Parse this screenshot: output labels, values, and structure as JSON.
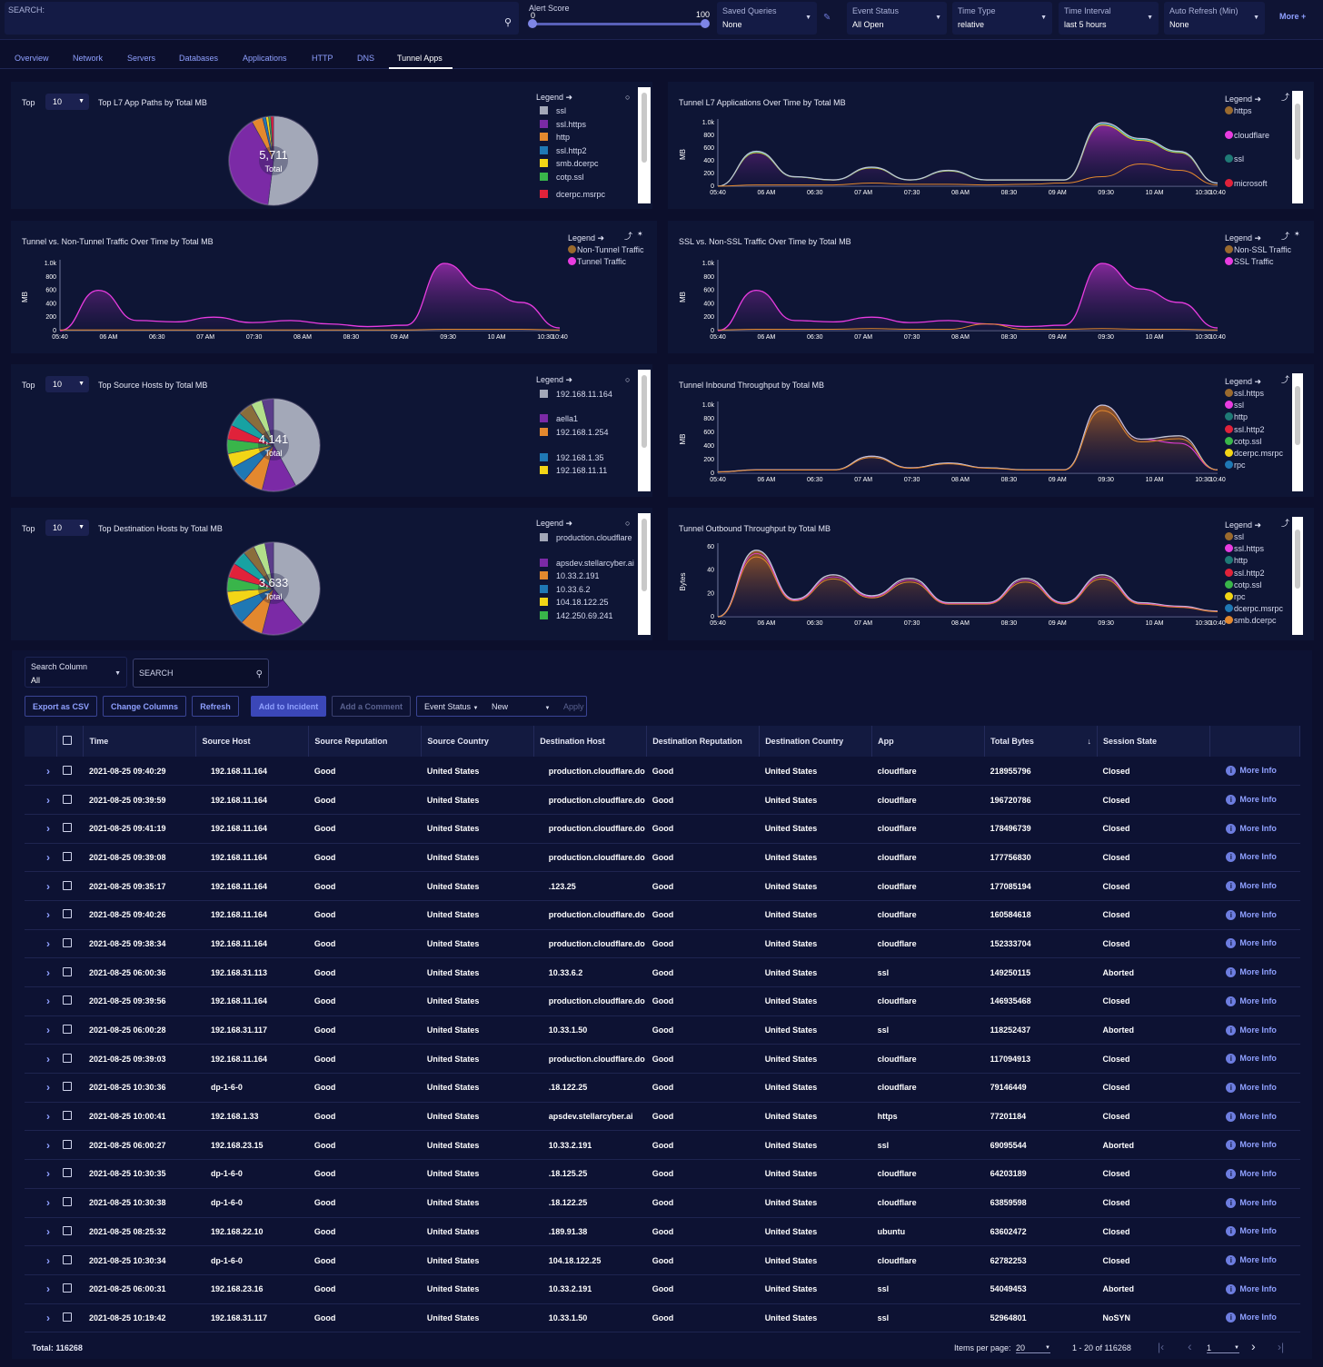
{
  "top": {
    "search_label": "SEARCH:",
    "alert_score": {
      "label": "Alert Score",
      "min": "0",
      "max": "100",
      "low": 0,
      "high": 100
    },
    "saved_queries": {
      "label": "Saved Queries",
      "value": "None"
    },
    "event_status": {
      "label": "Event Status",
      "value": "All Open"
    },
    "time_type": {
      "label": "Time Type",
      "value": "relative"
    },
    "time_interval": {
      "label": "Time Interval",
      "value": "last 5 hours"
    },
    "auto_refresh": {
      "label": "Auto Refresh (Min)",
      "value": "None"
    },
    "more": "More +"
  },
  "tabs": [
    "Overview",
    "Network",
    "Servers",
    "Databases",
    "Applications",
    "HTTP",
    "DNS",
    "Tunnel Apps"
  ],
  "active_tab": "Tunnel Apps",
  "colors": {
    "accent": "#8fa0ff",
    "magenta": "#e83ce0",
    "orange": "#e3882e",
    "purple": "#7b2aa6",
    "gray": "#a3a8b8"
  },
  "x_ticks": [
    "05:40",
    "06 AM",
    "06:30",
    "07 AM",
    "07:30",
    "08 AM",
    "08:30",
    "09 AM",
    "09:30",
    "10 AM",
    "10:30",
    "10:40"
  ],
  "y_ticks_mb": [
    "0",
    "200",
    "400",
    "600",
    "800",
    "1.0k"
  ],
  "y_ticks_bytes": [
    "0",
    "20",
    "40",
    "60"
  ],
  "panels": {
    "p1": {
      "top_label": "Top",
      "top_value": "10",
      "title": "Top L7 App Paths by Total MB",
      "total": "5,711",
      "total_label": "Total",
      "legend_title": "Legend",
      "legend": [
        {
          "name": "ssl",
          "color": "#a3a8b8"
        },
        {
          "name": "ssl.https",
          "color": "#7b2aa6"
        },
        {
          "name": "http",
          "color": "#e3882e"
        },
        {
          "name": "ssl.http2",
          "color": "#1f78b4"
        },
        {
          "name": "smb.dcerpc",
          "color": "#f2d516"
        },
        {
          "name": "cotp.ssl",
          "color": "#39b54a"
        },
        {
          "name": "dcerpc.msrpc",
          "color": "#e0223a"
        }
      ]
    },
    "p2": {
      "title": "Tunnel L7 Applications Over Time by Total MB",
      "ylabel": "MB",
      "legend_title": "Legend",
      "legend": [
        {
          "name": "https",
          "color": "#9a6a2e"
        },
        {
          "name": "cloudflare",
          "color": "#e83ce0"
        },
        {
          "name": "ssl",
          "color": "#1f7a76"
        },
        {
          "name": "microsoft",
          "color": "#e0223a"
        }
      ]
    },
    "p3": {
      "title": "Tunnel vs. Non-Tunnel Traffic Over Time by Total MB",
      "ylabel": "MB",
      "legend_title": "Legend",
      "legend": [
        {
          "name": "Non-Tunnel Traffic",
          "color": "#9a6a2e"
        },
        {
          "name": "Tunnel Traffic",
          "color": "#e83ce0"
        }
      ]
    },
    "p4": {
      "title": "SSL vs. Non-SSL Traffic Over Time by Total MB",
      "ylabel": "MB",
      "legend_title": "Legend",
      "legend": [
        {
          "name": "Non-SSL Traffic",
          "color": "#9a6a2e"
        },
        {
          "name": "SSL Traffic",
          "color": "#e83ce0"
        }
      ]
    },
    "p5": {
      "top_label": "Top",
      "top_value": "10",
      "title": "Top Source Hosts by Total MB",
      "total": "4,141",
      "total_label": "Total",
      "legend_title": "Legend",
      "legend": [
        {
          "name": "192.168.11.164",
          "color": "#a3a8b8"
        },
        {
          "name": "aella1",
          "color": "#7b2aa6"
        },
        {
          "name": "192.168.1.254",
          "color": "#e3882e"
        },
        {
          "name": "192.168.1.35",
          "color": "#1f78b4"
        },
        {
          "name": "192.168.11.11",
          "color": "#f2d516"
        }
      ]
    },
    "p6": {
      "title": "Tunnel Inbound Throughput by Total MB",
      "ylabel": "MB",
      "legend_title": "Legend",
      "legend": [
        {
          "name": "ssl.https",
          "color": "#9a6a2e"
        },
        {
          "name": "ssl",
          "color": "#e83ce0"
        },
        {
          "name": "http",
          "color": "#1f7a76"
        },
        {
          "name": "ssl.http2",
          "color": "#e0223a"
        },
        {
          "name": "cotp.ssl",
          "color": "#39b54a"
        },
        {
          "name": "dcerpc.msrpc",
          "color": "#f2d516"
        },
        {
          "name": "rpc",
          "color": "#1f78b4"
        }
      ]
    },
    "p7": {
      "top_label": "Top",
      "top_value": "10",
      "title": "Top Destination Hosts by Total MB",
      "total": "3,633",
      "total_label": "Total",
      "legend_title": "Legend",
      "legend": [
        {
          "name": "production.cloudflare",
          "color": "#a3a8b8"
        },
        {
          "name": "apsdev.stellarcyber.ai",
          "color": "#7b2aa6"
        },
        {
          "name": "10.33.2.191",
          "color": "#e3882e"
        },
        {
          "name": "10.33.6.2",
          "color": "#1f78b4"
        },
        {
          "name": "104.18.122.25",
          "color": "#f2d516"
        },
        {
          "name": "142.250.69.241",
          "color": "#39b54a"
        }
      ]
    },
    "p8": {
      "title": "Tunnel Outbound Throughput by Total MB",
      "ylabel": "Bytes",
      "legend_title": "Legend",
      "legend": [
        {
          "name": "ssl",
          "color": "#9a6a2e"
        },
        {
          "name": "ssl.https",
          "color": "#e83ce0"
        },
        {
          "name": "http",
          "color": "#1f7a76"
        },
        {
          "name": "ssl.http2",
          "color": "#e0223a"
        },
        {
          "name": "cotp.ssl",
          "color": "#39b54a"
        },
        {
          "name": "rpc",
          "color": "#f2d516"
        },
        {
          "name": "dcerpc.msrpc",
          "color": "#1f78b4"
        },
        {
          "name": "smb.dcerpc",
          "color": "#e3882e"
        }
      ]
    }
  },
  "table_ctrl": {
    "search_column_label": "Search Column",
    "search_column_value": "All",
    "search_placeholder": "SEARCH",
    "export": "Export as CSV",
    "change_columns": "Change Columns",
    "refresh": "Refresh",
    "add_incident": "Add to Incident",
    "add_comment": "Add a Comment",
    "event_status_label": "Event Status",
    "event_status_value": "New",
    "apply": "Apply"
  },
  "table": {
    "columns": [
      "Time",
      "Source Host",
      "Source Reputation",
      "Source Country",
      "Destination Host",
      "Destination Reputation",
      "Destination Country",
      "App",
      "Total Bytes",
      "Session State"
    ],
    "more_info": "More Info",
    "rows": [
      [
        "2021-08-25 09:40:29",
        "192.168.11.164",
        "Good",
        "United States",
        "production.cloudflare.do",
        "Good",
        "United States",
        "cloudflare",
        "218955796",
        "Closed"
      ],
      [
        "2021-08-25 09:39:59",
        "192.168.11.164",
        "Good",
        "United States",
        "production.cloudflare.do",
        "Good",
        "United States",
        "cloudflare",
        "196720786",
        "Closed"
      ],
      [
        "2021-08-25 09:41:19",
        "192.168.11.164",
        "Good",
        "United States",
        "production.cloudflare.do",
        "Good",
        "United States",
        "cloudflare",
        "178496739",
        "Closed"
      ],
      [
        "2021-08-25 09:39:08",
        "192.168.11.164",
        "Good",
        "United States",
        "production.cloudflare.do",
        "Good",
        "United States",
        "cloudflare",
        "177756830",
        "Closed"
      ],
      [
        "2021-08-25 09:35:17",
        "192.168.11.164",
        "Good",
        "United States",
        ".123.25",
        "Good",
        "United States",
        "cloudflare",
        "177085194",
        "Closed"
      ],
      [
        "2021-08-25 09:40:26",
        "192.168.11.164",
        "Good",
        "United States",
        "production.cloudflare.do",
        "Good",
        "United States",
        "cloudflare",
        "160584618",
        "Closed"
      ],
      [
        "2021-08-25 09:38:34",
        "192.168.11.164",
        "Good",
        "United States",
        "production.cloudflare.do",
        "Good",
        "United States",
        "cloudflare",
        "152333704",
        "Closed"
      ],
      [
        "2021-08-25 06:00:36",
        "192.168.31.113",
        "Good",
        "United States",
        "10.33.6.2",
        "Good",
        "United States",
        "ssl",
        "149250115",
        "Aborted"
      ],
      [
        "2021-08-25 09:39:56",
        "192.168.11.164",
        "Good",
        "United States",
        "production.cloudflare.do",
        "Good",
        "United States",
        "cloudflare",
        "146935468",
        "Closed"
      ],
      [
        "2021-08-25 06:00:28",
        "192.168.31.117",
        "Good",
        "United States",
        "10.33.1.50",
        "Good",
        "United States",
        "ssl",
        "118252437",
        "Aborted"
      ],
      [
        "2021-08-25 09:39:03",
        "192.168.11.164",
        "Good",
        "United States",
        "production.cloudflare.do",
        "Good",
        "United States",
        "cloudflare",
        "117094913",
        "Closed"
      ],
      [
        "2021-08-25 10:30:36",
        "dp-1-6-0",
        "Good",
        "United States",
        ".18.122.25",
        "Good",
        "United States",
        "cloudflare",
        "79146449",
        "Closed"
      ],
      [
        "2021-08-25 10:00:41",
        "192.168.1.33",
        "Good",
        "United States",
        "apsdev.stellarcyber.ai",
        "Good",
        "United States",
        "https",
        "77201184",
        "Closed"
      ],
      [
        "2021-08-25 06:00:27",
        "192.168.23.15",
        "Good",
        "United States",
        "10.33.2.191",
        "Good",
        "United States",
        "ssl",
        "69095544",
        "Aborted"
      ],
      [
        "2021-08-25 10:30:35",
        "dp-1-6-0",
        "Good",
        "United States",
        ".18.125.25",
        "Good",
        "United States",
        "cloudflare",
        "64203189",
        "Closed"
      ],
      [
        "2021-08-25 10:30:38",
        "dp-1-6-0",
        "Good",
        "United States",
        ".18.122.25",
        "Good",
        "United States",
        "cloudflare",
        "63859598",
        "Closed"
      ],
      [
        "2021-08-25 08:25:32",
        "192.168.22.10",
        "Good",
        "United States",
        ".189.91.38",
        "Good",
        "United States",
        "ubuntu",
        "63602472",
        "Closed"
      ],
      [
        "2021-08-25 10:30:34",
        "dp-1-6-0",
        "Good",
        "United States",
        "104.18.122.25",
        "Good",
        "United States",
        "cloudflare",
        "62782253",
        "Closed"
      ],
      [
        "2021-08-25 06:00:31",
        "192.168.23.16",
        "Good",
        "United States",
        "10.33.2.191",
        "Good",
        "United States",
        "ssl",
        "54049453",
        "Aborted"
      ],
      [
        "2021-08-25 10:19:42",
        "192.168.31.117",
        "Good",
        "United States",
        "10.33.1.50",
        "Good",
        "United States",
        "ssl",
        "52964801",
        "NoSYN"
      ]
    ]
  },
  "footer": {
    "total": "Total: 116268",
    "items_per_page_label": "Items per page:",
    "items_per_page": "20",
    "range": "1 - 20 of 116268",
    "page": "1"
  }
}
